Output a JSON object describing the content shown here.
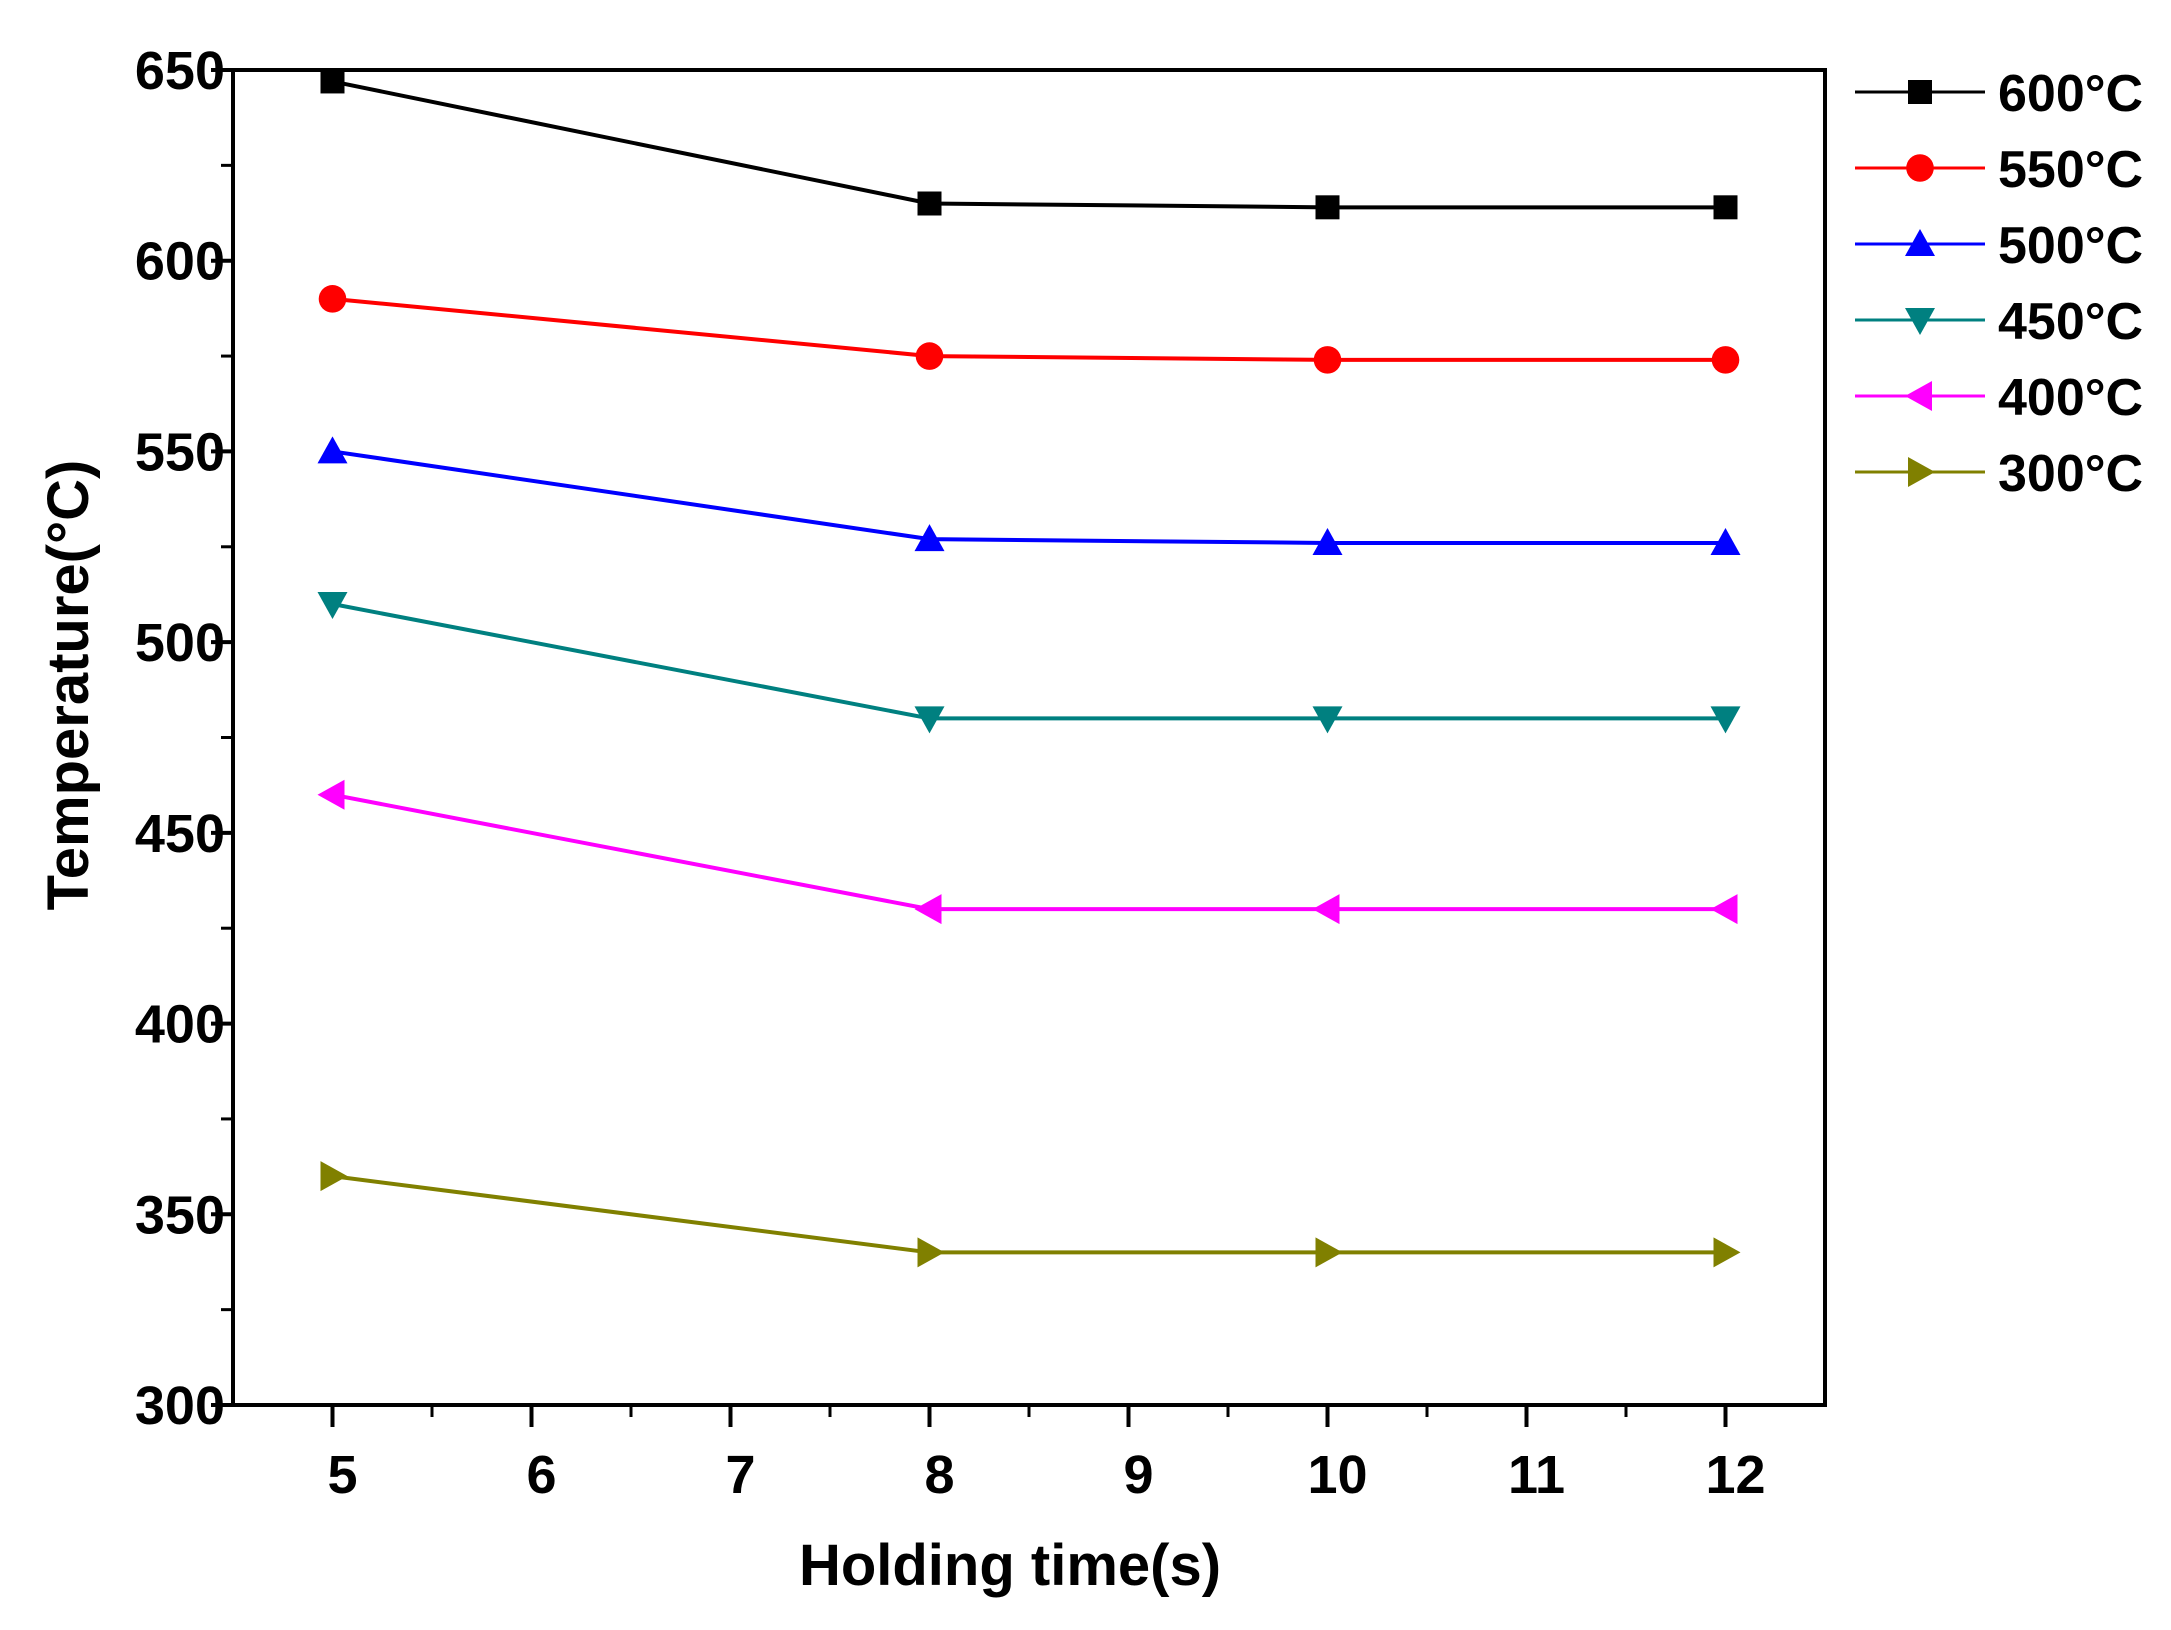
{
  "chart_data": {
    "type": "line",
    "title": "",
    "xlabel": "Holding time(s)",
    "ylabel": "Temperature(°C)",
    "xlim": [
      4.5,
      12.5
    ],
    "ylim": [
      300,
      650
    ],
    "xticks": [
      5,
      6,
      7,
      8,
      9,
      10,
      11,
      12
    ],
    "yticks": [
      300,
      350,
      400,
      450,
      500,
      550,
      600,
      650
    ],
    "grid": false,
    "legend_position": "right-top, outside plot",
    "x": [
      5,
      8,
      10,
      12
    ],
    "series": [
      {
        "name": "600°C",
        "marker": "square",
        "color": "#000000",
        "values": [
          647,
          615,
          614,
          614
        ]
      },
      {
        "name": "550°C",
        "marker": "circle",
        "color": "#ff0000",
        "values": [
          590,
          575,
          574,
          574
        ]
      },
      {
        "name": "500°C",
        "marker": "triangle-up",
        "color": "#0000ff",
        "values": [
          550,
          527,
          526,
          526
        ]
      },
      {
        "name": "450°C",
        "marker": "triangle-down",
        "color": "#008080",
        "values": [
          510,
          480,
          480,
          480
        ]
      },
      {
        "name": "400°C",
        "marker": "triangle-left",
        "color": "#ff00ff",
        "values": [
          460,
          430,
          430,
          430
        ]
      },
      {
        "name": "300°C",
        "marker": "triangle-right",
        "color": "#808000",
        "values": [
          360,
          340,
          340,
          340
        ]
      }
    ]
  }
}
